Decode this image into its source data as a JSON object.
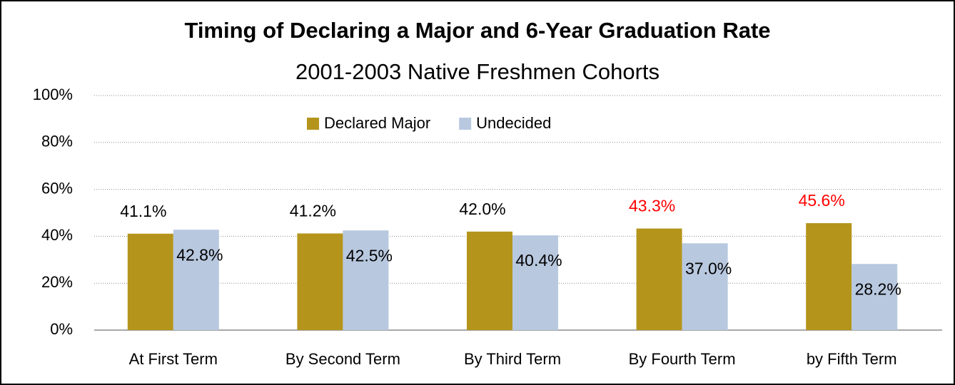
{
  "chart_data": {
    "type": "bar",
    "title": "Timing of Declaring a Major and 6-Year Graduation Rate",
    "subtitle": "2001-2003 Native Freshmen Cohorts",
    "categories": [
      "At First Term",
      "By Second Term",
      "By Third Term",
      "By Fourth Term",
      "by Fifth Term"
    ],
    "series": [
      {
        "name": "Declared Major",
        "color": "#b5941b",
        "values": [
          41.1,
          41.2,
          42.0,
          43.3,
          45.6
        ],
        "value_labels": [
          "41.1%",
          "41.2%",
          "42.0%",
          "43.3%",
          "45.6%"
        ],
        "value_label_colors": [
          "#000000",
          "#000000",
          "#000000",
          "#ff0000",
          "#ff0000"
        ]
      },
      {
        "name": "Undecided",
        "color": "#b8c8df",
        "values": [
          42.8,
          42.5,
          40.4,
          37.0,
          28.2
        ],
        "value_labels": [
          "42.8%",
          "42.5%",
          "40.4%",
          "37.0%",
          "28.2%"
        ],
        "value_label_colors": [
          "#000000",
          "#000000",
          "#000000",
          "#000000",
          "#000000"
        ]
      }
    ],
    "ylim": [
      0,
      100
    ],
    "yticks": [
      {
        "value": 0,
        "label": "0%"
      },
      {
        "value": 20,
        "label": "20%"
      },
      {
        "value": 40,
        "label": "40%"
      },
      {
        "value": 60,
        "label": "60%"
      },
      {
        "value": 80,
        "label": "80%"
      },
      {
        "value": 100,
        "label": "100%"
      }
    ],
    "grid": true,
    "legend": "top"
  }
}
